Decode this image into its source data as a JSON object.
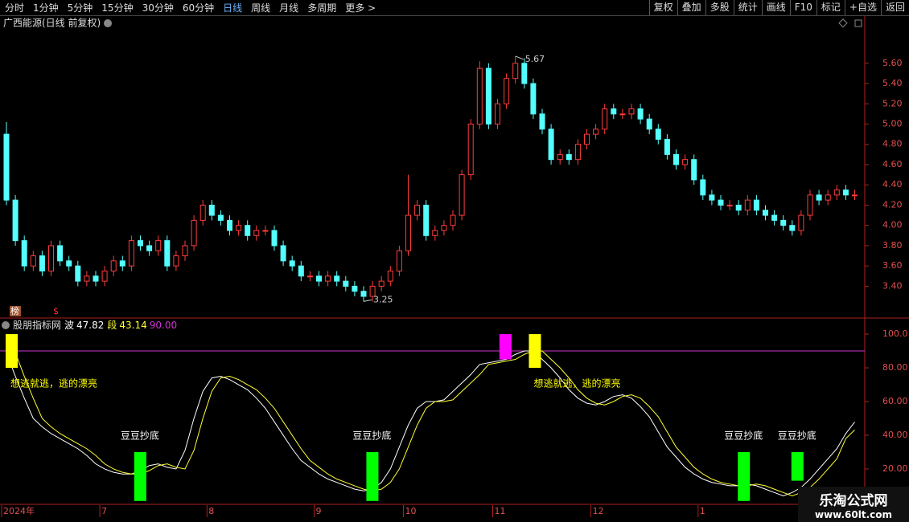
{
  "toolbar": {
    "periods": [
      "分时",
      "1分钟",
      "5分钟",
      "15分钟",
      "30分钟",
      "60分钟",
      "日线",
      "周线",
      "月线",
      "多周期",
      "更多 >"
    ],
    "active_period_index": 6,
    "buttons": [
      "复权",
      "叠加",
      "多股",
      "统计",
      "画线",
      "F10",
      "标记",
      "+自选",
      "返回"
    ]
  },
  "markers": [
    "榜",
    "$"
  ],
  "watermark": {
    "title": "乐淘公式网",
    "url": "www.60lt.com"
  },
  "chart_data": [
    {
      "type": "candlestick",
      "title": "广西能源(日线 前复权)",
      "up_color": "#ff3c3c",
      "down_color": "#54ffff",
      "ylim": [
        3.11,
        6.05
      ],
      "yticks": [
        {
          "value": 3.4,
          "label": "3.40"
        },
        {
          "value": 3.6,
          "label": "3.60"
        },
        {
          "value": 3.8,
          "label": "3.80"
        },
        {
          "value": 4.0,
          "label": "4.00"
        },
        {
          "value": 4.2,
          "label": "4.20"
        },
        {
          "value": 4.4,
          "label": "4.40"
        },
        {
          "value": 4.6,
          "label": "4.60"
        },
        {
          "value": 4.8,
          "label": "4.80"
        },
        {
          "value": 5.0,
          "label": "5.00"
        },
        {
          "value": 5.2,
          "label": "5.20"
        },
        {
          "value": 5.4,
          "label": "5.40"
        },
        {
          "value": 5.6,
          "label": "5.60"
        }
      ],
      "series": [
        {
          "open": [
            4.9,
            4.25,
            3.85,
            3.6,
            3.7,
            3.55,
            3.8,
            3.65,
            3.6,
            3.45,
            3.5,
            3.45,
            3.55,
            3.65,
            3.6,
            3.85,
            3.8,
            3.75,
            3.85,
            3.6,
            3.7,
            3.8,
            4.05,
            4.2,
            4.1,
            4.05,
            3.95,
            4.0,
            3.9,
            3.95,
            3.95,
            3.8,
            3.65,
            3.6,
            3.5,
            3.5,
            3.45,
            3.5,
            3.45,
            3.4,
            3.35,
            3.3,
            3.4,
            3.45,
            3.55,
            3.75,
            4.1,
            4.2,
            3.9,
            3.95,
            4.0,
            4.1,
            4.5,
            5.0,
            5.55,
            5.0,
            5.2,
            5.45,
            5.6,
            5.4,
            5.1,
            4.95,
            4.65,
            4.7,
            4.65,
            4.8,
            4.9,
            4.95,
            5.15,
            5.1,
            5.1,
            5.15,
            5.05,
            4.95,
            4.85,
            4.7,
            4.6,
            4.65,
            4.45,
            4.3,
            4.25,
            4.2,
            4.2,
            4.15,
            4.25,
            4.15,
            4.1,
            4.05,
            4.0,
            3.95,
            4.1,
            4.3,
            4.25,
            4.3,
            4.35,
            4.3
          ],
          "high": [
            5.02,
            4.3,
            3.9,
            3.75,
            3.75,
            3.85,
            3.85,
            3.7,
            3.65,
            3.55,
            3.55,
            3.6,
            3.7,
            3.7,
            3.9,
            3.9,
            3.85,
            3.9,
            3.9,
            3.75,
            3.85,
            4.1,
            4.25,
            4.25,
            4.15,
            4.1,
            4.05,
            4.05,
            4.0,
            4.0,
            4.0,
            3.85,
            3.7,
            3.65,
            3.55,
            3.55,
            3.55,
            3.55,
            3.5,
            3.45,
            3.4,
            3.45,
            3.5,
            3.6,
            3.8,
            4.5,
            4.25,
            4.25,
            4.0,
            4.05,
            4.15,
            4.55,
            5.05,
            5.62,
            5.6,
            5.25,
            5.5,
            5.67,
            5.65,
            5.45,
            5.15,
            5.0,
            4.75,
            4.75,
            4.85,
            4.95,
            5.0,
            5.2,
            5.2,
            5.15,
            5.2,
            5.2,
            5.1,
            5.0,
            4.9,
            4.75,
            4.7,
            4.7,
            4.5,
            4.35,
            4.3,
            4.25,
            4.25,
            4.3,
            4.3,
            4.2,
            4.15,
            4.1,
            4.05,
            4.15,
            4.35,
            4.35,
            4.35,
            4.4,
            4.4,
            4.35
          ],
          "low": [
            4.2,
            3.8,
            3.55,
            3.55,
            3.5,
            3.5,
            3.6,
            3.55,
            3.4,
            3.4,
            3.4,
            3.4,
            3.5,
            3.55,
            3.55,
            3.75,
            3.7,
            3.7,
            3.55,
            3.55,
            3.65,
            3.75,
            4.0,
            4.05,
            4.0,
            3.9,
            3.9,
            3.85,
            3.85,
            3.9,
            3.75,
            3.6,
            3.55,
            3.45,
            3.45,
            3.4,
            3.4,
            3.4,
            3.35,
            3.3,
            3.25,
            3.25,
            3.35,
            3.4,
            3.5,
            3.7,
            4.05,
            3.85,
            3.85,
            3.9,
            3.95,
            4.05,
            4.45,
            4.95,
            4.95,
            4.95,
            5.15,
            5.4,
            5.35,
            5.05,
            4.9,
            4.6,
            4.6,
            4.6,
            4.6,
            4.75,
            4.85,
            4.9,
            5.05,
            5.05,
            5.05,
            5.0,
            4.9,
            4.8,
            4.65,
            4.55,
            4.55,
            4.4,
            4.25,
            4.2,
            4.15,
            4.15,
            4.1,
            4.1,
            4.1,
            4.05,
            4.0,
            3.95,
            3.9,
            3.9,
            4.05,
            4.2,
            4.2,
            4.25,
            4.25,
            4.25
          ],
          "close": [
            4.25,
            3.85,
            3.6,
            3.7,
            3.55,
            3.8,
            3.65,
            3.6,
            3.45,
            3.5,
            3.45,
            3.55,
            3.65,
            3.6,
            3.85,
            3.8,
            3.75,
            3.85,
            3.6,
            3.7,
            3.8,
            4.05,
            4.2,
            4.1,
            4.05,
            3.95,
            4.0,
            3.9,
            3.95,
            3.95,
            3.8,
            3.65,
            3.6,
            3.5,
            3.5,
            3.45,
            3.5,
            3.45,
            3.4,
            3.35,
            3.3,
            3.4,
            3.45,
            3.55,
            3.75,
            4.1,
            4.2,
            3.9,
            3.95,
            4.0,
            4.1,
            4.5,
            5.0,
            5.55,
            5.0,
            5.2,
            5.45,
            5.6,
            5.4,
            5.1,
            4.95,
            4.65,
            4.7,
            4.65,
            4.8,
            4.9,
            4.95,
            5.15,
            5.1,
            5.1,
            5.15,
            5.05,
            4.95,
            4.85,
            4.7,
            4.6,
            4.65,
            4.45,
            4.3,
            4.25,
            4.2,
            4.2,
            4.15,
            4.25,
            4.15,
            4.1,
            4.05,
            4.0,
            3.95,
            4.1,
            4.3,
            4.25,
            4.3,
            4.35,
            4.3,
            4.3
          ]
        }
      ]
    },
    {
      "type": "line",
      "title": "股朋指标网",
      "ylim": [
        -1,
        108.6
      ],
      "yticks": [
        {
          "value": 20,
          "label": "20.00"
        },
        {
          "value": 40,
          "label": "40.00"
        },
        {
          "value": 60,
          "label": "60.00"
        },
        {
          "value": 80,
          "label": "80.00"
        },
        {
          "value": 100,
          "label": "100.0"
        }
      ],
      "xticks": [
        {
          "value": 0,
          "label": "2024年"
        },
        {
          "value": 11,
          "label": "7"
        },
        {
          "value": 23,
          "label": "8"
        },
        {
          "value": 35,
          "label": "9"
        },
        {
          "value": 45,
          "label": "10"
        },
        {
          "value": 55,
          "label": "11"
        },
        {
          "value": 66,
          "label": "12"
        },
        {
          "value": 78,
          "label": "1"
        }
      ],
      "reference": {
        "value": 90,
        "label": "90.00",
        "color": "#cc33cc"
      },
      "series": [
        {
          "name": "波",
          "color": "#ffffff",
          "values": [
            89,
            75,
            62,
            50,
            45,
            41,
            38,
            35,
            32,
            28,
            23,
            20,
            18,
            17,
            17,
            19,
            22,
            23,
            21,
            20,
            31,
            50,
            66,
            74,
            75,
            73,
            70,
            67,
            62,
            56,
            48,
            40,
            32,
            25,
            21,
            17,
            14,
            12,
            10,
            8,
            7,
            8,
            12,
            20,
            33,
            46,
            56,
            60,
            60,
            61,
            66,
            71,
            76,
            82,
            83,
            84,
            85,
            88,
            90,
            90,
            85,
            80,
            74,
            67,
            62,
            59,
            58,
            60,
            63,
            64,
            62,
            57,
            51,
            42,
            33,
            27,
            21,
            17,
            14,
            12,
            11,
            10,
            10,
            11,
            10,
            8,
            6,
            4,
            6,
            9,
            14,
            20,
            26,
            32,
            41,
            47.82
          ]
        },
        {
          "name": "段",
          "color": "#ffff33",
          "values": [
            92,
            89,
            75,
            62,
            50,
            45,
            41,
            38,
            35,
            32,
            28,
            23,
            20,
            18,
            17,
            17,
            19,
            22,
            23,
            21,
            20,
            31,
            50,
            66,
            74,
            75,
            73,
            70,
            67,
            62,
            56,
            48,
            40,
            32,
            25,
            21,
            17,
            14,
            12,
            10,
            8,
            7,
            8,
            12,
            20,
            33,
            46,
            56,
            60,
            60,
            61,
            66,
            71,
            76,
            82,
            83,
            84,
            85,
            88,
            90,
            90,
            85,
            80,
            74,
            67,
            62,
            59,
            58,
            60,
            63,
            64,
            62,
            57,
            51,
            42,
            33,
            27,
            21,
            17,
            14,
            12,
            11,
            10,
            10,
            11,
            10,
            8,
            6,
            4,
            6,
            9,
            14,
            20,
            26,
            38,
            43.14
          ]
        }
      ],
      "signals": [
        {
          "x": 0,
          "low": 80,
          "high": 100,
          "color": "#ffff00",
          "label": "想逃就逃，逃的漂亮"
        },
        {
          "x": 14.4,
          "low": 1,
          "high": 30,
          "color": "#00ff00",
          "label": "豆豆抄底"
        },
        {
          "x": 40.4,
          "low": 1,
          "high": 30,
          "color": "#00ff00",
          "label": "豆豆抄底"
        },
        {
          "x": 55.3,
          "low": 85,
          "high": 100,
          "color": "#ff00ff"
        },
        {
          "x": 58.6,
          "low": 80,
          "high": 100,
          "color": "#ffff00",
          "label": "想逃就逃，逃的漂亮"
        },
        {
          "x": 82,
          "low": 1,
          "high": 30,
          "color": "#00ff00",
          "label": "豆豆抄底"
        },
        {
          "x": 88,
          "low": 13,
          "high": 30,
          "color": "#00ff00",
          "label": "豆豆抄底"
        }
      ]
    }
  ]
}
